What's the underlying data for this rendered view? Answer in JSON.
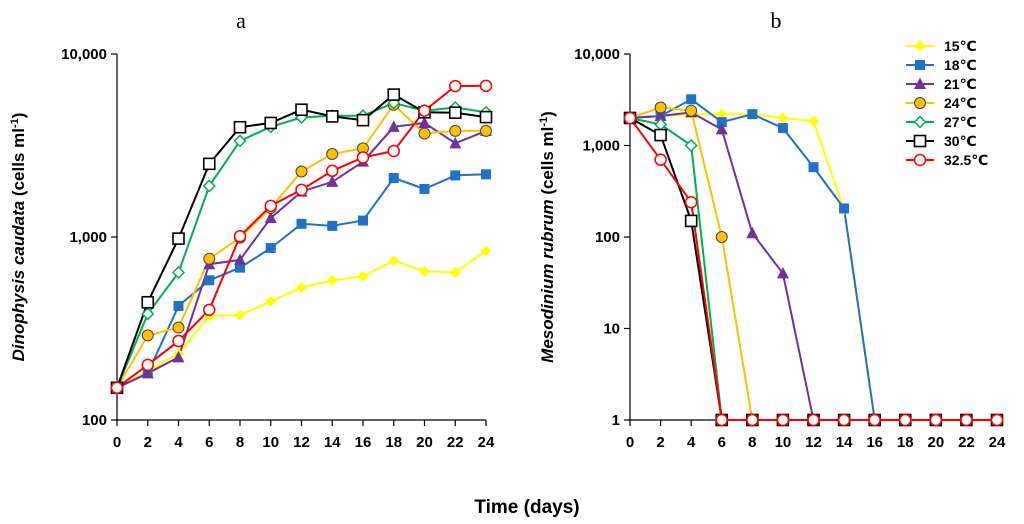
{
  "figure": {
    "xlabel": "Time (days)",
    "legend_position": "top-right"
  },
  "chart_data": [
    {
      "type": "line",
      "panel": "a",
      "title": "a",
      "ylabel_italic": "Dinophysis caudata",
      "ylabel_units": " (cells ml",
      "ylabel_sup": "-1",
      "ylabel_close": ")",
      "yscale": "log",
      "ylim": [
        100,
        10000
      ],
      "yticks": [
        100,
        1000,
        10000
      ],
      "ytick_labels": [
        "100",
        "1,000",
        "10,000"
      ],
      "xlim": [
        0,
        24
      ],
      "xticks": [
        0,
        2,
        4,
        6,
        8,
        10,
        12,
        14,
        16,
        18,
        20,
        22,
        24
      ],
      "xtick_labels": [
        "0",
        "2",
        "4",
        "6",
        "8",
        "10",
        "12",
        "14",
        "16",
        "18",
        "20",
        "22",
        "24"
      ],
      "x": [
        0,
        2,
        4,
        6,
        8,
        10,
        12,
        14,
        16,
        18,
        20,
        22,
        24
      ],
      "series": [
        {
          "name": "15℃",
          "color": "#FFFF00",
          "marker": "diamond-filled",
          "values": [
            150,
            185,
            230,
            370,
            375,
            445,
            530,
            580,
            610,
            740,
            650,
            640,
            840
          ]
        },
        {
          "name": "18℃",
          "color": "#1F72C8",
          "marker": "square-filled",
          "values": [
            150,
            180,
            420,
            580,
            680,
            870,
            1180,
            1150,
            1230,
            2100,
            1830,
            2170,
            2200
          ]
        },
        {
          "name": "21℃",
          "color": "#7030A0",
          "marker": "triangle-filled",
          "values": [
            150,
            180,
            220,
            710,
            750,
            1270,
            1770,
            2000,
            2580,
            4000,
            4200,
            3250,
            3800
          ]
        },
        {
          "name": "24℃",
          "color": "#FFC000",
          "marker": "circle-filled",
          "values": [
            150,
            290,
            320,
            760,
            990,
            1440,
            2280,
            2840,
            3050,
            5280,
            3680,
            3800,
            3800
          ]
        },
        {
          "name": "27℃",
          "color": "#00B050",
          "marker": "diamond-open",
          "values": [
            150,
            380,
            640,
            1900,
            3350,
            4000,
            4500,
            4600,
            4600,
            5400,
            4900,
            5100,
            4800
          ]
        },
        {
          "name": "30℃",
          "color": "#000000",
          "marker": "square-open",
          "values": [
            150,
            440,
            980,
            2510,
            3980,
            4200,
            4960,
            4560,
            4350,
            6000,
            4800,
            4780,
            4520
          ]
        },
        {
          "name": "32.5℃",
          "color": "#FF0000",
          "marker": "circle-open",
          "values": [
            150,
            200,
            270,
            400,
            1010,
            1480,
            1810,
            2300,
            2720,
            2950,
            4900,
            6680,
            6700
          ]
        }
      ]
    },
    {
      "type": "line",
      "panel": "b",
      "title": "b",
      "ylabel_italic": "Mesodinium rubrum",
      "ylabel_units": " (cells ml",
      "ylabel_sup": "-1",
      "ylabel_close": ")",
      "yscale": "log",
      "ylim": [
        1,
        10000
      ],
      "yticks": [
        1,
        10,
        100,
        1000,
        10000
      ],
      "ytick_labels": [
        "1",
        "10",
        "100",
        "1,000",
        "10,000"
      ],
      "xlim": [
        0,
        24
      ],
      "xticks": [
        0,
        2,
        4,
        6,
        8,
        10,
        12,
        14,
        16,
        18,
        20,
        22,
        24
      ],
      "xtick_labels": [
        "0",
        "2",
        "4",
        "6",
        "8",
        "10",
        "12",
        "14",
        "16",
        "18",
        "20",
        "22",
        "24"
      ],
      "x": [
        0,
        2,
        4,
        6,
        8,
        10,
        12,
        14,
        16,
        18,
        20,
        22,
        24
      ],
      "series": [
        {
          "name": "15℃",
          "color": "#FFFF00",
          "marker": "diamond-filled",
          "values": [
            2000,
            2100,
            2200,
            2200,
            2200,
            2000,
            1850,
            200,
            1,
            1,
            1,
            1,
            1
          ]
        },
        {
          "name": "18℃",
          "color": "#1F72C8",
          "marker": "square-filled",
          "values": [
            2000,
            2100,
            3200,
            1800,
            2200,
            1550,
            580,
            205,
            1,
            1,
            1,
            1,
            1
          ]
        },
        {
          "name": "21℃",
          "color": "#7030A0",
          "marker": "triangle-filled",
          "values": [
            2000,
            2100,
            2300,
            1500,
            110,
            40,
            1,
            1,
            1,
            1,
            1,
            1,
            1
          ]
        },
        {
          "name": "24℃",
          "color": "#FFC000",
          "marker": "circle-filled",
          "values": [
            2000,
            2600,
            2400,
            100,
            1,
            1,
            1,
            1,
            1,
            1,
            1,
            1,
            1
          ]
        },
        {
          "name": "27℃",
          "color": "#00B050",
          "marker": "diamond-open",
          "values": [
            2000,
            1700,
            1000,
            1,
            1,
            1,
            1,
            1,
            1,
            1,
            1,
            1,
            1
          ]
        },
        {
          "name": "30℃",
          "color": "#000000",
          "marker": "square-open",
          "values": [
            2000,
            1300,
            150,
            1,
            1,
            1,
            1,
            1,
            1,
            1,
            1,
            1,
            1
          ]
        },
        {
          "name": "32.5℃",
          "color": "#FF0000",
          "marker": "circle-open",
          "values": [
            2000,
            700,
            240,
            1,
            1,
            1,
            1,
            1,
            1,
            1,
            1,
            1,
            1
          ]
        }
      ]
    }
  ]
}
